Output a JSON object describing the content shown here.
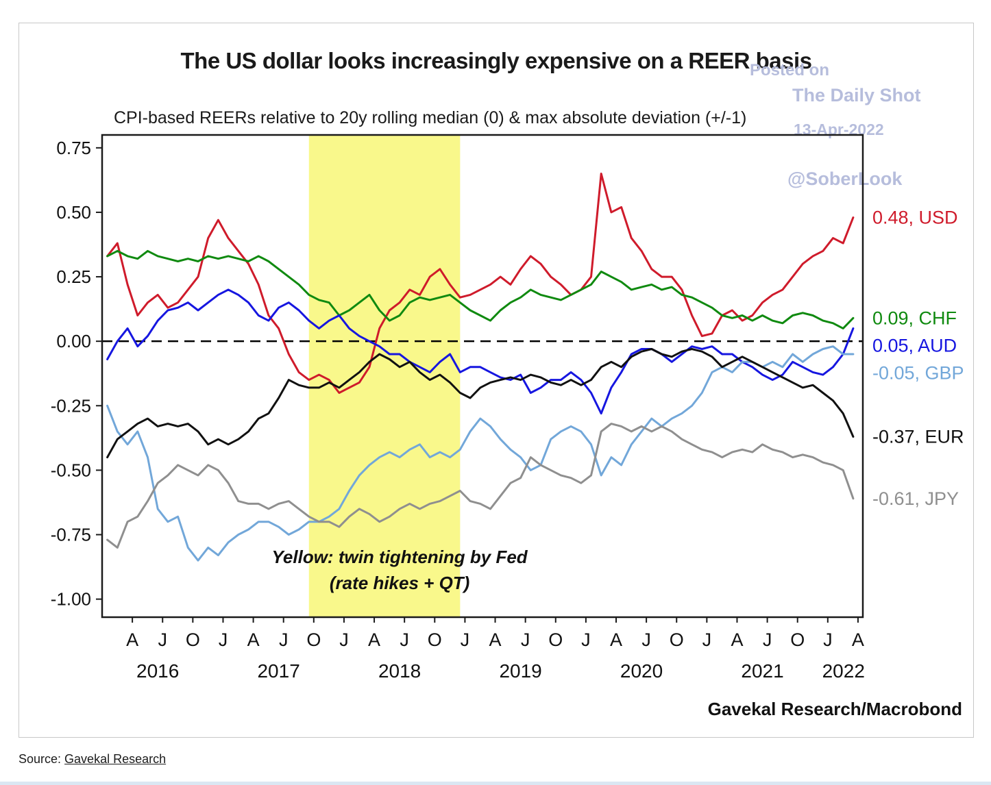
{
  "page": {
    "source_prefix": "Source: ",
    "source_link": "Gavekal Research"
  },
  "watermark": {
    "line1": "Posted on",
    "line2": "The Daily Shot",
    "line3": "13-Apr-2022",
    "handle": "@SoberLook",
    "color": "#b6bddc"
  },
  "chart_data": {
    "type": "line",
    "title": "The US dollar looks increasingly expensive on a REER basis",
    "subtitle": "CPI-based REERs relative to 20y rolling median (0) & max absolute deviation (+/-1)",
    "attribution": "Gavekal Research/Macrobond",
    "grid": false,
    "legend_position": "right",
    "xlim": [
      2016.04,
      2022.33
    ],
    "ylim": [
      -1.07,
      0.8
    ],
    "yticks": [
      0.75,
      0.5,
      0.25,
      0.0,
      -0.25,
      -0.5,
      -0.75,
      -1.0
    ],
    "zero_line_y": 0,
    "highlight_band": {
      "x0": 2017.75,
      "x1": 2019.0,
      "color": "#f7f66e",
      "opacity": 0.8,
      "annotation_line1": "Yellow: twin tightening by Fed",
      "annotation_line2": "(rate hikes + QT)",
      "annotation_x": 2018.5,
      "annotation_y": -0.86
    },
    "x_start": 2016.0833,
    "x_step": 0.0833333,
    "month_ticks": [
      {
        "x": 2016.29,
        "l": "A"
      },
      {
        "x": 2016.54,
        "l": "J"
      },
      {
        "x": 2016.79,
        "l": "O"
      },
      {
        "x": 2017.04,
        "l": "J"
      },
      {
        "x": 2017.29,
        "l": "A"
      },
      {
        "x": 2017.54,
        "l": "J"
      },
      {
        "x": 2017.79,
        "l": "O"
      },
      {
        "x": 2018.04,
        "l": "J"
      },
      {
        "x": 2018.29,
        "l": "A"
      },
      {
        "x": 2018.54,
        "l": "J"
      },
      {
        "x": 2018.79,
        "l": "O"
      },
      {
        "x": 2019.04,
        "l": "J"
      },
      {
        "x": 2019.29,
        "l": "A"
      },
      {
        "x": 2019.54,
        "l": "J"
      },
      {
        "x": 2019.79,
        "l": "O"
      },
      {
        "x": 2020.04,
        "l": "J"
      },
      {
        "x": 2020.29,
        "l": "A"
      },
      {
        "x": 2020.54,
        "l": "J"
      },
      {
        "x": 2020.79,
        "l": "O"
      },
      {
        "x": 2021.04,
        "l": "J"
      },
      {
        "x": 2021.29,
        "l": "A"
      },
      {
        "x": 2021.54,
        "l": "J"
      },
      {
        "x": 2021.79,
        "l": "O"
      },
      {
        "x": 2022.04,
        "l": "J"
      },
      {
        "x": 2022.29,
        "l": "A"
      }
    ],
    "year_ticks": [
      {
        "x": 2016.5,
        "l": "2016"
      },
      {
        "x": 2017.5,
        "l": "2017"
      },
      {
        "x": 2018.5,
        "l": "2018"
      },
      {
        "x": 2019.5,
        "l": "2019"
      },
      {
        "x": 2020.5,
        "l": "2020"
      },
      {
        "x": 2021.5,
        "l": "2021"
      },
      {
        "x": 2022.17,
        "l": "2022"
      }
    ],
    "series": [
      {
        "name": "USD",
        "color": "#cf1b2b",
        "end_value": 0.48,
        "end_label": "0.48, USD",
        "values": [
          0.33,
          0.38,
          0.22,
          0.1,
          0.15,
          0.18,
          0.13,
          0.15,
          0.2,
          0.25,
          0.4,
          0.47,
          0.4,
          0.35,
          0.3,
          0.22,
          0.1,
          0.05,
          -0.05,
          -0.12,
          -0.15,
          -0.13,
          -0.15,
          -0.2,
          -0.18,
          -0.16,
          -0.1,
          0.05,
          0.12,
          0.15,
          0.2,
          0.18,
          0.25,
          0.28,
          0.22,
          0.17,
          0.18,
          0.2,
          0.22,
          0.25,
          0.22,
          0.28,
          0.33,
          0.3,
          0.25,
          0.22,
          0.18,
          0.2,
          0.25,
          0.65,
          0.5,
          0.52,
          0.4,
          0.35,
          0.28,
          0.25,
          0.25,
          0.2,
          0.1,
          0.02,
          0.03,
          0.1,
          0.12,
          0.08,
          0.1,
          0.15,
          0.18,
          0.2,
          0.25,
          0.3,
          0.33,
          0.35,
          0.4,
          0.38,
          0.48
        ]
      },
      {
        "name": "CHF",
        "color": "#108a10",
        "end_value": 0.09,
        "end_label": "0.09, CHF",
        "values": [
          0.33,
          0.35,
          0.33,
          0.32,
          0.35,
          0.33,
          0.32,
          0.31,
          0.32,
          0.31,
          0.33,
          0.32,
          0.33,
          0.32,
          0.31,
          0.33,
          0.31,
          0.28,
          0.25,
          0.22,
          0.18,
          0.16,
          0.15,
          0.1,
          0.12,
          0.15,
          0.18,
          0.12,
          0.08,
          0.1,
          0.15,
          0.17,
          0.16,
          0.17,
          0.18,
          0.15,
          0.12,
          0.1,
          0.08,
          0.12,
          0.15,
          0.17,
          0.2,
          0.18,
          0.17,
          0.16,
          0.18,
          0.2,
          0.22,
          0.27,
          0.25,
          0.23,
          0.2,
          0.21,
          0.22,
          0.2,
          0.21,
          0.18,
          0.17,
          0.15,
          0.13,
          0.1,
          0.09,
          0.1,
          0.08,
          0.1,
          0.08,
          0.07,
          0.1,
          0.11,
          0.1,
          0.08,
          0.07,
          0.05,
          0.09
        ]
      },
      {
        "name": "AUD",
        "color": "#1616e0",
        "end_value": 0.05,
        "end_label": "0.05, AUD",
        "values": [
          -0.07,
          0.0,
          0.05,
          -0.02,
          0.02,
          0.08,
          0.12,
          0.13,
          0.15,
          0.12,
          0.15,
          0.18,
          0.2,
          0.18,
          0.15,
          0.1,
          0.08,
          0.13,
          0.15,
          0.12,
          0.08,
          0.05,
          0.08,
          0.1,
          0.05,
          0.02,
          0.0,
          -0.02,
          -0.05,
          -0.05,
          -0.08,
          -0.1,
          -0.12,
          -0.08,
          -0.05,
          -0.12,
          -0.1,
          -0.1,
          -0.12,
          -0.14,
          -0.15,
          -0.13,
          -0.2,
          -0.18,
          -0.15,
          -0.15,
          -0.12,
          -0.15,
          -0.2,
          -0.28,
          -0.18,
          -0.12,
          -0.05,
          -0.03,
          -0.03,
          -0.05,
          -0.08,
          -0.05,
          -0.02,
          -0.03,
          -0.02,
          -0.05,
          -0.05,
          -0.08,
          -0.1,
          -0.13,
          -0.15,
          -0.13,
          -0.08,
          -0.1,
          -0.12,
          -0.13,
          -0.1,
          -0.05,
          0.05
        ]
      },
      {
        "name": "GBP",
        "color": "#72a7d9",
        "end_value": -0.05,
        "end_label": "-0.05, GBP",
        "values": [
          -0.25,
          -0.35,
          -0.4,
          -0.35,
          -0.45,
          -0.65,
          -0.7,
          -0.68,
          -0.8,
          -0.85,
          -0.8,
          -0.83,
          -0.78,
          -0.75,
          -0.73,
          -0.7,
          -0.7,
          -0.72,
          -0.75,
          -0.73,
          -0.7,
          -0.7,
          -0.68,
          -0.65,
          -0.58,
          -0.52,
          -0.48,
          -0.45,
          -0.43,
          -0.45,
          -0.42,
          -0.4,
          -0.45,
          -0.43,
          -0.45,
          -0.42,
          -0.35,
          -0.3,
          -0.33,
          -0.38,
          -0.42,
          -0.45,
          -0.5,
          -0.48,
          -0.38,
          -0.35,
          -0.33,
          -0.35,
          -0.4,
          -0.52,
          -0.45,
          -0.48,
          -0.4,
          -0.35,
          -0.3,
          -0.33,
          -0.3,
          -0.28,
          -0.25,
          -0.2,
          -0.12,
          -0.1,
          -0.12,
          -0.08,
          -0.08,
          -0.1,
          -0.08,
          -0.1,
          -0.05,
          -0.08,
          -0.05,
          -0.03,
          -0.02,
          -0.05,
          -0.05
        ]
      },
      {
        "name": "EUR",
        "color": "#111111",
        "end_value": -0.37,
        "end_label": "-0.37, EUR",
        "values": [
          -0.45,
          -0.38,
          -0.35,
          -0.32,
          -0.3,
          -0.33,
          -0.32,
          -0.33,
          -0.32,
          -0.35,
          -0.4,
          -0.38,
          -0.4,
          -0.38,
          -0.35,
          -0.3,
          -0.28,
          -0.22,
          -0.15,
          -0.17,
          -0.18,
          -0.18,
          -0.16,
          -0.18,
          -0.15,
          -0.12,
          -0.08,
          -0.05,
          -0.07,
          -0.1,
          -0.08,
          -0.12,
          -0.15,
          -0.13,
          -0.16,
          -0.2,
          -0.22,
          -0.18,
          -0.16,
          -0.15,
          -0.14,
          -0.15,
          -0.13,
          -0.14,
          -0.16,
          -0.17,
          -0.15,
          -0.17,
          -0.15,
          -0.1,
          -0.08,
          -0.1,
          -0.06,
          -0.04,
          -0.03,
          -0.05,
          -0.06,
          -0.04,
          -0.03,
          -0.04,
          -0.06,
          -0.1,
          -0.08,
          -0.06,
          -0.08,
          -0.1,
          -0.12,
          -0.14,
          -0.16,
          -0.18,
          -0.17,
          -0.2,
          -0.23,
          -0.28,
          -0.37
        ]
      },
      {
        "name": "JPY",
        "color": "#8f8f8f",
        "end_value": -0.61,
        "end_label": "-0.61, JPY",
        "values": [
          -0.77,
          -0.8,
          -0.7,
          -0.68,
          -0.62,
          -0.55,
          -0.52,
          -0.48,
          -0.5,
          -0.52,
          -0.48,
          -0.5,
          -0.55,
          -0.62,
          -0.63,
          -0.63,
          -0.65,
          -0.63,
          -0.62,
          -0.65,
          -0.68,
          -0.7,
          -0.7,
          -0.72,
          -0.68,
          -0.65,
          -0.67,
          -0.7,
          -0.68,
          -0.65,
          -0.63,
          -0.65,
          -0.63,
          -0.62,
          -0.6,
          -0.58,
          -0.62,
          -0.63,
          -0.65,
          -0.6,
          -0.55,
          -0.53,
          -0.45,
          -0.48,
          -0.5,
          -0.52,
          -0.53,
          -0.55,
          -0.52,
          -0.35,
          -0.32,
          -0.33,
          -0.35,
          -0.33,
          -0.35,
          -0.33,
          -0.35,
          -0.38,
          -0.4,
          -0.42,
          -0.43,
          -0.45,
          -0.43,
          -0.42,
          -0.43,
          -0.4,
          -0.42,
          -0.43,
          -0.45,
          -0.44,
          -0.45,
          -0.47,
          -0.48,
          -0.5,
          -0.61
        ]
      }
    ]
  }
}
